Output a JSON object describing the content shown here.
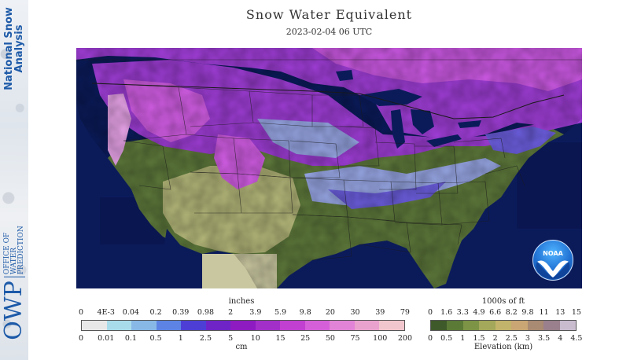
{
  "sidebar": {
    "nsa_line1": "National Snow",
    "nsa_line2": "Analysis",
    "owp_abbrev": "OWP",
    "owp_line1": "OFFICE OF",
    "owp_line2": "WATER",
    "owp_line3": "PREDICTION"
  },
  "header": {
    "title": "Snow Water Equivalent",
    "timestamp": "2023-02-04 06 UTC"
  },
  "map": {
    "logo_text": "NOAA",
    "colors": {
      "ocean": "#0b1b5a",
      "lowland": "#5f7a3c",
      "highland": "#b5b87a",
      "snow_light": "#9aa9e8",
      "snow_mid": "#6d5fe0",
      "snow_heavy": "#a03ed8",
      "snow_deep": "#d35ee6",
      "snow_extreme": "#e7a3e8",
      "lakes": "#0b1b5a"
    }
  },
  "swe_legend": {
    "unit_top": "inches",
    "unit_bottom": "cm",
    "inch_ticks": [
      "0",
      "4E-3",
      "0.04",
      "0.2",
      "0.39",
      "0.98",
      "2",
      "3.9",
      "5.9",
      "9.8",
      "20",
      "30",
      "39",
      "79"
    ],
    "cm_ticks": [
      "0",
      "0.01",
      "0.1",
      "0.5",
      "1",
      "2.5",
      "5",
      "10",
      "15",
      "25",
      "50",
      "75",
      "100",
      "200"
    ],
    "colors": [
      "#e8e8e8",
      "#a9dcea",
      "#88b8e6",
      "#5d84e4",
      "#4d3fd6",
      "#6f24c8",
      "#8d1bc1",
      "#a32fc9",
      "#c13fd1",
      "#d55fd8",
      "#e183d6",
      "#e9a2cd",
      "#f2c6cd"
    ]
  },
  "elev_legend": {
    "unit_top": "1000s of ft",
    "unit_bottom": "Elevation (km)",
    "ft_ticks": [
      "0",
      "1.6",
      "3.3",
      "4.9",
      "6.6",
      "8.2",
      "9.8",
      "11",
      "13",
      "15"
    ],
    "km_ticks": [
      "0",
      "0.5",
      "1",
      "1.5",
      "2",
      "2.5",
      "3",
      "3.5",
      "4",
      "4.5"
    ],
    "colors": [
      "#3f5a2a",
      "#5b7a36",
      "#7d9446",
      "#a3a85a",
      "#c2b46a",
      "#c9a673",
      "#a98a72",
      "#9a7f8c",
      "#c9bccf"
    ]
  }
}
